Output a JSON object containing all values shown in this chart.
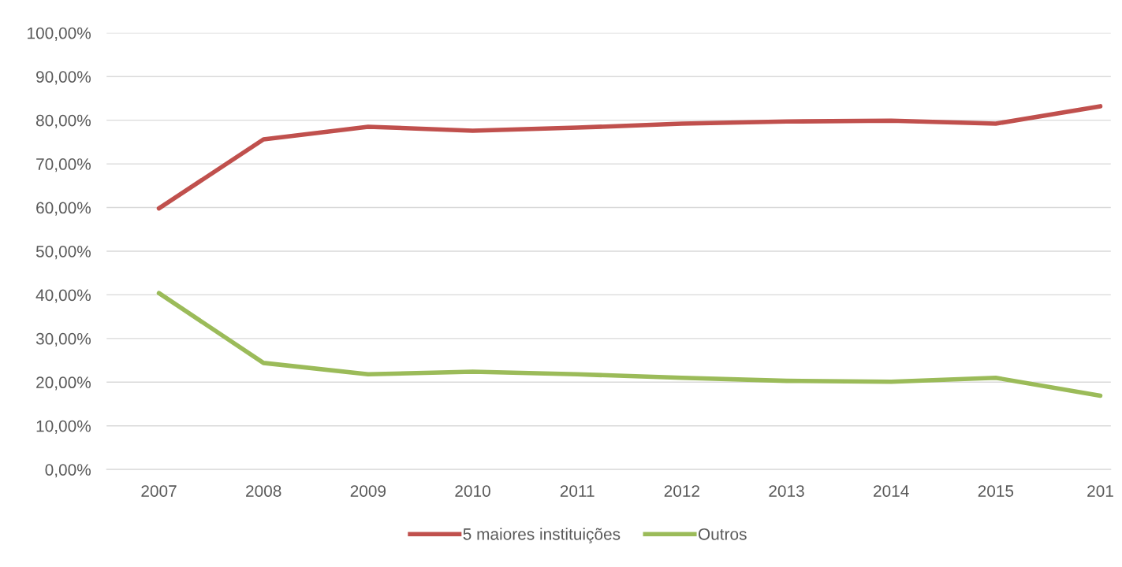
{
  "chart_data": {
    "type": "line",
    "categories": [
      "2007",
      "2008",
      "2009",
      "2010",
      "2011",
      "2012",
      "2013",
      "2014",
      "2015",
      "201"
    ],
    "series": [
      {
        "name": "5 maiores instituições",
        "color": "#c0504d",
        "values": [
          59.8,
          75.6,
          78.5,
          77.6,
          78.3,
          79.2,
          79.7,
          79.9,
          79.2,
          83.2
        ]
      },
      {
        "name": "Outros",
        "color": "#9bbb59",
        "values": [
          40.4,
          24.4,
          21.8,
          22.4,
          21.8,
          21.0,
          20.3,
          20.1,
          21.0,
          16.9
        ]
      }
    ],
    "ylim": [
      0,
      100
    ],
    "yticks": [
      {
        "value": 0,
        "label": "0,00%"
      },
      {
        "value": 10,
        "label": "10,00%"
      },
      {
        "value": 20,
        "label": "20,00%"
      },
      {
        "value": 30,
        "label": "30,00%"
      },
      {
        "value": 40,
        "label": "40,00%"
      },
      {
        "value": 50,
        "label": "50,00%"
      },
      {
        "value": 60,
        "label": "60,00%"
      },
      {
        "value": 70,
        "label": "70,00%"
      },
      {
        "value": 80,
        "label": "80,00%"
      },
      {
        "value": 90,
        "label": "90,00%"
      },
      {
        "value": 100,
        "label": "100,00%"
      }
    ],
    "grid": "y",
    "legend": "bottom",
    "marker": "none",
    "line_style": "solid"
  }
}
